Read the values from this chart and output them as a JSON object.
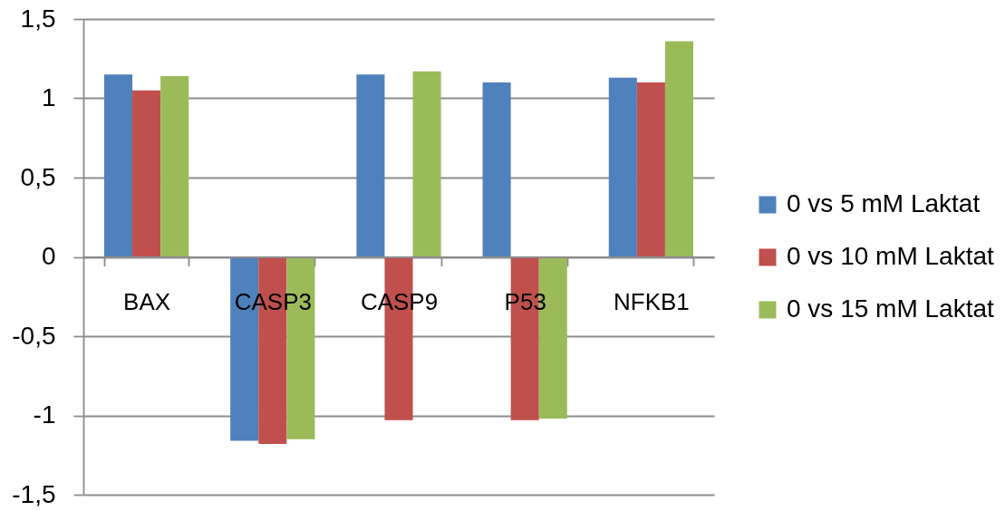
{
  "chart_data": {
    "type": "bar",
    "categories": [
      "BAX",
      "CASP3",
      "CASP9",
      "P53",
      "NFKB1"
    ],
    "series": [
      {
        "name": "0 vs 5 mM Laktat",
        "color": "#4f81bd",
        "values": [
          1.15,
          -1.16,
          1.15,
          1.1,
          1.13
        ]
      },
      {
        "name": "0 vs 10 mM Laktat",
        "color": "#c0504d",
        "values": [
          1.05,
          -1.18,
          -1.03,
          -1.03,
          1.1
        ]
      },
      {
        "name": "0 vs 15 mM Laktat",
        "color": "#9bbb59",
        "values": [
          1.14,
          -1.15,
          1.17,
          -1.02,
          1.36
        ]
      }
    ],
    "ylim": [
      -1.5,
      1.5
    ],
    "yticks": [
      {
        "value": -1.5,
        "label": "-1,5"
      },
      -1,
      {
        "value": -0.5,
        "label": "-0,5"
      },
      0,
      {
        "value": 0.5,
        "label": "0,5"
      },
      1,
      {
        "value": 1.5,
        "label": "1,5"
      }
    ],
    "grid": "y",
    "legend": "right"
  }
}
